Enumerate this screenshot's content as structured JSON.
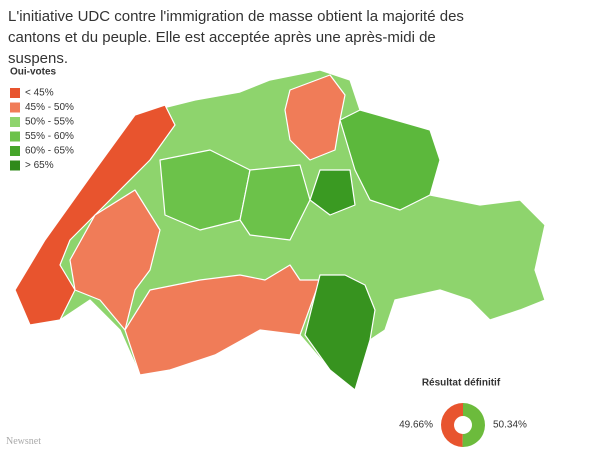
{
  "header": {
    "title": "L'initiative UDC contre l'immigration de masse obtient la majorité des cantons et du peuple. Elle est acceptée après une après-midi de suspens."
  },
  "legend": {
    "title": "Oui-votes",
    "items": [
      {
        "label": "< 45%",
        "color": "#e8542e"
      },
      {
        "label": "45% - 50%",
        "color": "#f07c58"
      },
      {
        "label": "50% - 55%",
        "color": "#8ed46d"
      },
      {
        "label": "55% - 60%",
        "color": "#6cc24a"
      },
      {
        "label": "60% - 65%",
        "color": "#45a52a"
      },
      {
        "label": "> 65%",
        "color": "#2f8a1a"
      }
    ]
  },
  "chart_data": {
    "type": "pie",
    "title": "Résultat définitif",
    "values": [
      49.66,
      50.34
    ],
    "value_labels": [
      "49.66%",
      "50.34%"
    ],
    "colors": [
      "#e8542e",
      "#6cbb3c"
    ]
  },
  "source": "Newsnet"
}
